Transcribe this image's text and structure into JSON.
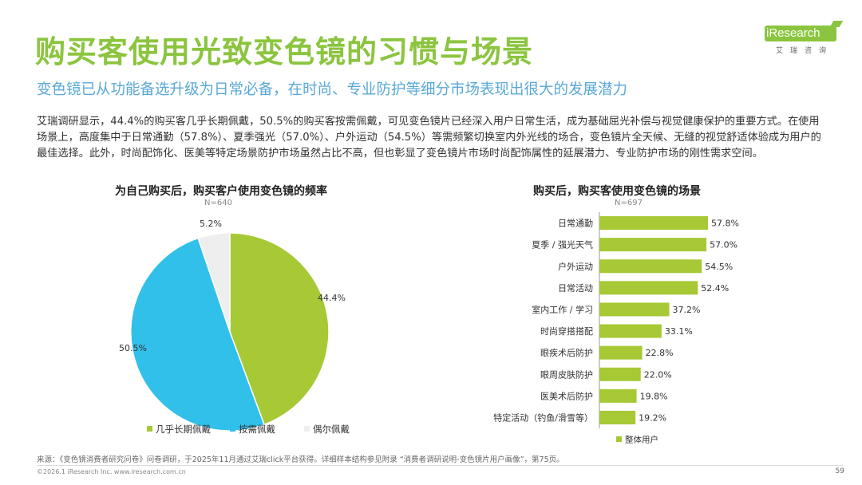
{
  "header": {
    "title": "购买客使用光致变色镜的习惯与场景",
    "subtitle": "变色镜已从功能备选升级为日常必备，在时尚、专业防护等细分市场表现出很大的发展潜力",
    "logo_text": "iResearch",
    "logo_sub": "艾瑞咨询"
  },
  "body_text": "艾瑞调研显示，44.4%的购买客几乎长期佩戴，50.5%的购买客按需佩戴，可见变色镜片已经深入用户日常生活，成为基础屈光补偿与视觉健康保护的重要方式。在使用场景上，高度集中于日常通勤（57.8%）、夏季强光（57.0%）、户外运动（54.5%）等需频繁切换室内外光线的场合，变色镜片全天候、无缝的视觉舒适体验成为用户的最佳选择。此外，时尚配饰化、医美等特定场景防护市场虽然占比不高，但也彰显了变色镜片市场时尚配饰属性的延展潜力、专业防护市场的刚性需求空间。",
  "colors": {
    "green": "#a6c935",
    "cyan": "#31c0ea",
    "light": "#eeeeee",
    "title_green": "#8bc53f",
    "subtitle_blue": "#5aa8d6"
  },
  "chart_data": [
    {
      "type": "pie",
      "title": "为自己购买后，购买客户使用变色镜的频率",
      "n_label": "N=640",
      "slices": [
        {
          "label": "几乎长期佩戴",
          "value": 44.4,
          "display": "44.4%",
          "color": "#a6c935"
        },
        {
          "label": "按需佩戴",
          "value": 50.5,
          "display": "50.5%",
          "color": "#31c0ea"
        },
        {
          "label": "偶尔佩戴",
          "value": 5.2,
          "display": "5.2%",
          "color": "#eeeeee"
        }
      ],
      "start": "12 o'clock",
      "direction": "clockwise",
      "legend_position": "bottom"
    },
    {
      "type": "bar",
      "orientation": "horizontal",
      "title": "购买后，购买客使用变色镜的场景",
      "n_label": "N=697",
      "categories": [
        "日常通勤",
        "夏季 / 强光天气",
        "户外运动",
        "日常活动",
        "室内工作 / 学习",
        "时尚穿搭搭配",
        "眼疾术后防护",
        "眼周皮肤防护",
        "医美术后防护",
        "特定活动（钓鱼/滑雪等）"
      ],
      "values": [
        57.8,
        57.0,
        54.5,
        52.4,
        37.2,
        33.1,
        22.8,
        22.0,
        19.8,
        19.2
      ],
      "value_labels": [
        "57.8%",
        "57.0%",
        "54.5%",
        "52.4%",
        "37.2%",
        "33.1%",
        "22.8%",
        "22.0%",
        "19.8%",
        "19.2%"
      ],
      "series_name": "整体用户",
      "color": "#a6c935",
      "xlim": [
        0,
        60
      ],
      "legend_position": "bottom-left"
    }
  ],
  "footer": {
    "source": "来源：《变色镜消费者研究问卷》问卷调研，于2025年11月通过艾瑞click平台获得。详细样本结构参见附录 “消费者调研说明-变色镜片用户画像”，第75页。",
    "copyright": "©2026.1 iResearch Inc.                       www.iresearch.com.cn",
    "page": "59"
  }
}
